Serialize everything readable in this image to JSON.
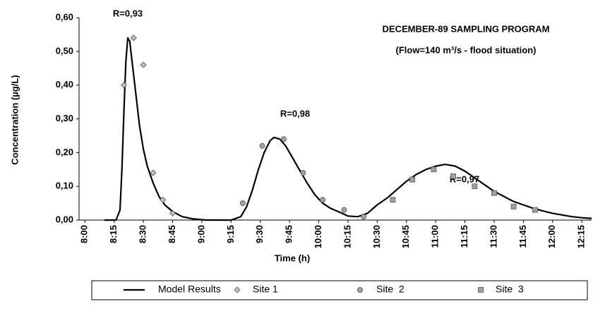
{
  "chart_data": {
    "type": "scatter",
    "title": [
      "DECEMBER-89 SAMPLING PROGRAM",
      "(Flow=140 m³/s - flood situation)"
    ],
    "annotations": [
      "R=0,93",
      "R=0,98",
      "R=0,97"
    ],
    "xlabel": "Time (h)",
    "ylabel": "Concentration (µg/L)",
    "xlim": [
      477,
      740
    ],
    "ylim": [
      0,
      0.6
    ],
    "xticks": [
      {
        "value": 480,
        "label": "8:00"
      },
      {
        "value": 495,
        "label": "8:15"
      },
      {
        "value": 510,
        "label": "8:30"
      },
      {
        "value": 525,
        "label": "8:45"
      },
      {
        "value": 540,
        "label": "9:00"
      },
      {
        "value": 555,
        "label": "9:15"
      },
      {
        "value": 570,
        "label": "9:30"
      },
      {
        "value": 585,
        "label": "9:45"
      },
      {
        "value": 600,
        "label": "10:00"
      },
      {
        "value": 615,
        "label": "10:15"
      },
      {
        "value": 630,
        "label": "10:30"
      },
      {
        "value": 645,
        "label": "10:45"
      },
      {
        "value": 660,
        "label": "11:00"
      },
      {
        "value": 675,
        "label": "11:15"
      },
      {
        "value": 690,
        "label": "11:30"
      },
      {
        "value": 705,
        "label": "11:45"
      },
      {
        "value": 720,
        "label": "12:00"
      },
      {
        "value": 735,
        "label": "12:15"
      }
    ],
    "yticks": [
      {
        "value": 0,
        "label": "0,00"
      },
      {
        "value": 0.1,
        "label": "0,10"
      },
      {
        "value": 0.2,
        "label": "0,20"
      },
      {
        "value": 0.3,
        "label": "0,30"
      },
      {
        "value": 0.4,
        "label": "0,40"
      },
      {
        "value": 0.5,
        "label": "0,50"
      },
      {
        "value": 0.6,
        "label": "0,60"
      }
    ],
    "series": [
      {
        "name": "Model Results",
        "mode": "line",
        "color": "#000000",
        "x": [
          490,
          496,
          498,
          499,
          500,
          501,
          502,
          503,
          504,
          506,
          508,
          510,
          512,
          515,
          518,
          521,
          525,
          530,
          535,
          542,
          555,
          560,
          563,
          566,
          569,
          572,
          575,
          577,
          580,
          583,
          586,
          590,
          594,
          598,
          602,
          606,
          610,
          615,
          620,
          625,
          630,
          635,
          640,
          645,
          650,
          655,
          660,
          665,
          670,
          675,
          680,
          685,
          690,
          695,
          700,
          705,
          710,
          715,
          720,
          725,
          730,
          735,
          740
        ],
        "values": [
          0,
          0,
          0.03,
          0.15,
          0.32,
          0.47,
          0.54,
          0.53,
          0.48,
          0.38,
          0.28,
          0.21,
          0.16,
          0.11,
          0.07,
          0.045,
          0.025,
          0.01,
          0.004,
          0,
          0,
          0.01,
          0.04,
          0.09,
          0.15,
          0.2,
          0.235,
          0.245,
          0.24,
          0.22,
          0.19,
          0.15,
          0.11,
          0.075,
          0.05,
          0.035,
          0.025,
          0.012,
          0.01,
          0.02,
          0.045,
          0.065,
          0.09,
          0.115,
          0.135,
          0.15,
          0.16,
          0.165,
          0.16,
          0.145,
          0.125,
          0.105,
          0.085,
          0.07,
          0.055,
          0.045,
          0.035,
          0.027,
          0.02,
          0.015,
          0.01,
          0.007,
          0.005
        ]
      },
      {
        "name": "Site 1",
        "mode": "markers",
        "marker": "diamond",
        "color": "#c0c0c0",
        "x": [
          500,
          505,
          510,
          515,
          520,
          525
        ],
        "values": [
          0.4,
          0.54,
          0.46,
          0.14,
          0.06,
          0.02
        ]
      },
      {
        "name": "Site  2",
        "mode": "markers",
        "marker": "circle",
        "color": "#a0a0a0",
        "x": [
          561,
          571,
          582,
          592,
          602,
          613,
          623
        ],
        "values": [
          0.05,
          0.22,
          0.24,
          0.14,
          0.06,
          0.03,
          0.01
        ]
      },
      {
        "name": "Site  3",
        "mode": "markers",
        "marker": "square",
        "color": "#a0a0a0",
        "x": [
          638,
          648,
          659,
          669,
          680,
          690,
          700,
          711
        ],
        "values": [
          0.06,
          0.12,
          0.15,
          0.13,
          0.1,
          0.08,
          0.04,
          0.03
        ]
      }
    ]
  }
}
